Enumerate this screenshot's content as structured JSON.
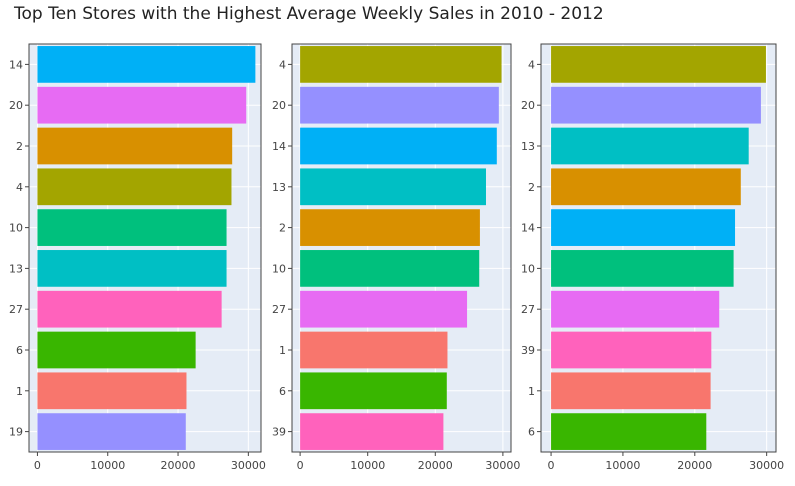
{
  "chart_data": [
    {
      "type": "bar",
      "orientation": "horizontal",
      "title": "Top Ten Stores with the Highest Average Weekly Sales in 2010 - 2012",
      "categories": [
        "14",
        "20",
        "2",
        "4",
        "10",
        "13",
        "27",
        "6",
        "1",
        "19"
      ],
      "values": [
        31000,
        29700,
        27700,
        27600,
        26900,
        26900,
        26200,
        22500,
        21200,
        21100
      ],
      "colors": [
        "#00B0F6",
        "#E76BF3",
        "#D89000",
        "#A3A500",
        "#00C07D",
        "#00BFC4",
        "#FF62BC",
        "#39B600",
        "#F8766D",
        "#9590FF"
      ],
      "xlim": [
        -1200,
        31800
      ],
      "xticks": [
        0,
        10000,
        20000,
        30000
      ],
      "grid": true
    },
    {
      "type": "bar",
      "orientation": "horizontal",
      "categories": [
        "4",
        "20",
        "14",
        "13",
        "2",
        "10",
        "27",
        "1",
        "6",
        "39"
      ],
      "values": [
        29800,
        29400,
        29100,
        27500,
        26600,
        26500,
        24700,
        21800,
        21700,
        21200
      ],
      "colors": [
        "#A3A500",
        "#9590FF",
        "#00B0F6",
        "#00BFC4",
        "#D89000",
        "#00C07D",
        "#E76BF3",
        "#F8766D",
        "#39B600",
        "#FF62BC"
      ],
      "xlim": [
        -1200,
        31200
      ],
      "xticks": [
        0,
        10000,
        20000,
        30000
      ],
      "grid": true
    },
    {
      "type": "bar",
      "orientation": "horizontal",
      "categories": [
        "4",
        "20",
        "13",
        "2",
        "14",
        "10",
        "27",
        "39",
        "1",
        "6"
      ],
      "values": [
        29900,
        29200,
        27500,
        26400,
        25600,
        25400,
        23400,
        22300,
        22200,
        21600
      ],
      "colors": [
        "#A3A500",
        "#9590FF",
        "#00BFC4",
        "#D89000",
        "#00B0F6",
        "#00C07D",
        "#E76BF3",
        "#FF62BC",
        "#F8766D",
        "#39B600"
      ],
      "xlim": [
        -1400,
        31300
      ],
      "xticks": [
        0,
        10000,
        20000,
        30000
      ],
      "grid": true
    }
  ]
}
